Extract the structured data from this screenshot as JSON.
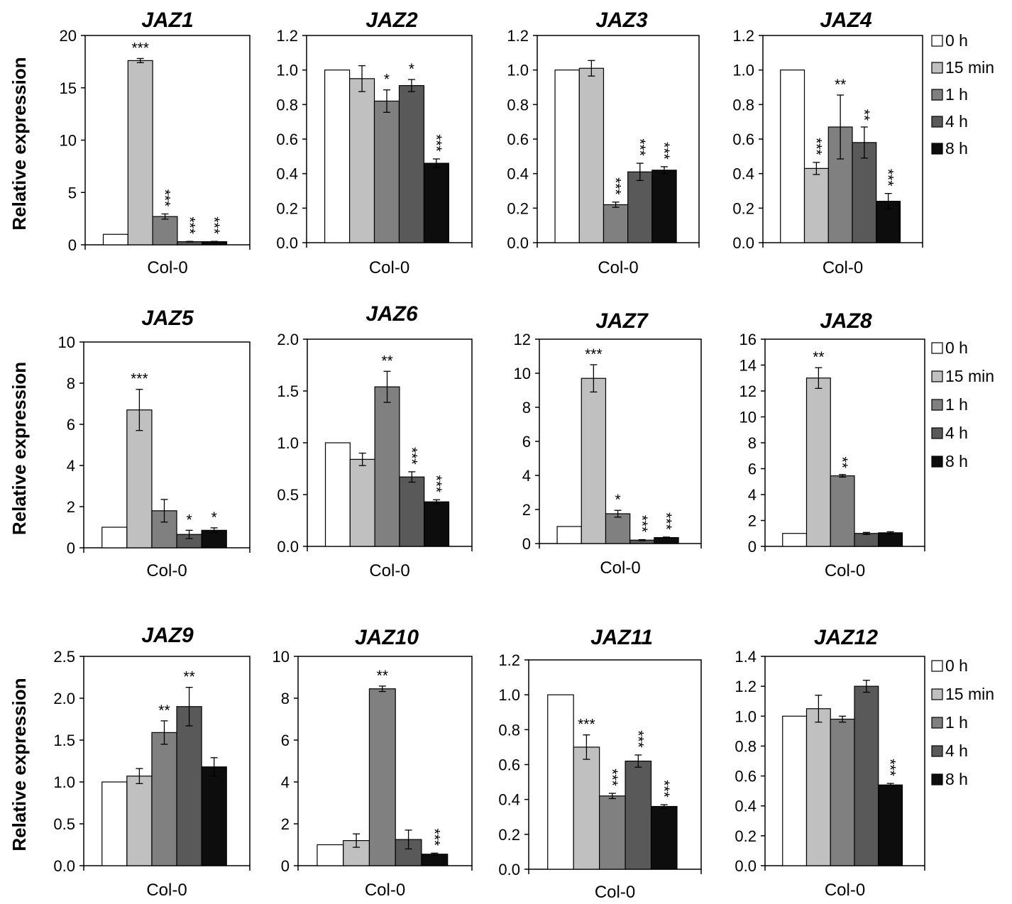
{
  "shared": {
    "ylabel": "Relative expression",
    "xlabel": "Col-0",
    "legend_labels": [
      "0 h",
      "15 min",
      "1 h",
      "4 h",
      "8 h"
    ],
    "colors": [
      "#ffffff",
      "#c0c0c0",
      "#808080",
      "#595959",
      "#0d0d0d"
    ]
  },
  "chart_data": [
    {
      "type": "bar",
      "title": "JAZ1",
      "categories": [
        "Col-0"
      ],
      "ylim": [
        0,
        20
      ],
      "yticks": [
        "0",
        "5",
        "10",
        "15",
        "20"
      ],
      "series": [
        {
          "name": "0 h",
          "values": [
            1.0
          ],
          "err": [
            0.0
          ],
          "sig": ""
        },
        {
          "name": "15 min",
          "values": [
            17.6
          ],
          "err": [
            0.2
          ],
          "sig": "***"
        },
        {
          "name": "1 h",
          "values": [
            2.7
          ],
          "err": [
            0.25
          ],
          "sig": "***"
        },
        {
          "name": "4 h",
          "values": [
            0.3
          ],
          "err": [
            0.03
          ],
          "sig": "***"
        },
        {
          "name": "8 h",
          "values": [
            0.3
          ],
          "err": [
            0.03
          ],
          "sig": "***"
        }
      ]
    },
    {
      "type": "bar",
      "title": "JAZ2",
      "categories": [
        "Col-0"
      ],
      "ylim": [
        0,
        1.2
      ],
      "yticks": [
        "0.0",
        "0.2",
        "0.4",
        "0.6",
        "0.8",
        "1.0",
        "1.2"
      ],
      "series": [
        {
          "name": "0 h",
          "values": [
            1.0
          ],
          "err": [
            0.0
          ],
          "sig": ""
        },
        {
          "name": "15 min",
          "values": [
            0.95
          ],
          "err": [
            0.075
          ],
          "sig": ""
        },
        {
          "name": "1 h",
          "values": [
            0.82
          ],
          "err": [
            0.065
          ],
          "sig": "*"
        },
        {
          "name": "4 h",
          "values": [
            0.91
          ],
          "err": [
            0.035
          ],
          "sig": "*"
        },
        {
          "name": "8 h",
          "values": [
            0.46
          ],
          "err": [
            0.025
          ],
          "sig": "***"
        }
      ]
    },
    {
      "type": "bar",
      "title": "JAZ3",
      "categories": [
        "Col-0"
      ],
      "ylim": [
        0,
        1.2
      ],
      "yticks": [
        "0.0",
        "0.2",
        "0.4",
        "0.6",
        "0.8",
        "1.0",
        "1.2"
      ],
      "series": [
        {
          "name": "0 h",
          "values": [
            1.0
          ],
          "err": [
            0.0
          ],
          "sig": ""
        },
        {
          "name": "15 min",
          "values": [
            1.01
          ],
          "err": [
            0.045
          ],
          "sig": ""
        },
        {
          "name": "1 h",
          "values": [
            0.22
          ],
          "err": [
            0.015
          ],
          "sig": "***"
        },
        {
          "name": "4 h",
          "values": [
            0.41
          ],
          "err": [
            0.05
          ],
          "sig": "***"
        },
        {
          "name": "8 h",
          "values": [
            0.42
          ],
          "err": [
            0.02
          ],
          "sig": "***"
        }
      ]
    },
    {
      "type": "bar",
      "title": "JAZ4",
      "categories": [
        "Col-0"
      ],
      "ylim": [
        0,
        1.2
      ],
      "yticks": [
        "0.0",
        "0.2",
        "0.4",
        "0.6",
        "0.8",
        "1.0",
        "1.2"
      ],
      "series": [
        {
          "name": "0 h",
          "values": [
            1.0
          ],
          "err": [
            0.0
          ],
          "sig": ""
        },
        {
          "name": "15 min",
          "values": [
            0.43
          ],
          "err": [
            0.035
          ],
          "sig": "***"
        },
        {
          "name": "1 h",
          "values": [
            0.67
          ],
          "err": [
            0.185
          ],
          "sig": "**"
        },
        {
          "name": "4 h",
          "values": [
            0.58
          ],
          "err": [
            0.09
          ],
          "sig": "**"
        },
        {
          "name": "8 h",
          "values": [
            0.24
          ],
          "err": [
            0.045
          ],
          "sig": "***"
        }
      ]
    },
    {
      "type": "bar",
      "title": "JAZ5",
      "categories": [
        "Col-0"
      ],
      "ylim": [
        0,
        10
      ],
      "yticks": [
        "0",
        "2",
        "4",
        "6",
        "8",
        "10"
      ],
      "series": [
        {
          "name": "0 h",
          "values": [
            1.0
          ],
          "err": [
            0.0
          ],
          "sig": ""
        },
        {
          "name": "15 min",
          "values": [
            6.7
          ],
          "err": [
            1.0
          ],
          "sig": "***"
        },
        {
          "name": "1 h",
          "values": [
            1.8
          ],
          "err": [
            0.55
          ],
          "sig": ""
        },
        {
          "name": "4 h",
          "values": [
            0.65
          ],
          "err": [
            0.2
          ],
          "sig": "*"
        },
        {
          "name": "8 h",
          "values": [
            0.85
          ],
          "err": [
            0.12
          ],
          "sig": "*"
        }
      ]
    },
    {
      "type": "bar",
      "title": "JAZ6",
      "categories": [
        "Col-0"
      ],
      "ylim": [
        0,
        2.0
      ],
      "yticks": [
        "0.0",
        "0.5",
        "1.0",
        "1.5",
        "2.0"
      ],
      "series": [
        {
          "name": "0 h",
          "values": [
            1.0
          ],
          "err": [
            0.0
          ],
          "sig": ""
        },
        {
          "name": "15 min",
          "values": [
            0.84
          ],
          "err": [
            0.06
          ],
          "sig": ""
        },
        {
          "name": "1 h",
          "values": [
            1.54
          ],
          "err": [
            0.15
          ],
          "sig": "**"
        },
        {
          "name": "4 h",
          "values": [
            0.67
          ],
          "err": [
            0.05
          ],
          "sig": "***"
        },
        {
          "name": "8 h",
          "values": [
            0.43
          ],
          "err": [
            0.02
          ],
          "sig": "***"
        }
      ]
    },
    {
      "type": "bar",
      "title": "JAZ7",
      "categories": [
        "Col-0"
      ],
      "ylim": [
        0,
        12
      ],
      "yticks": [
        "0",
        "2",
        "4",
        "6",
        "8",
        "10",
        "12"
      ],
      "series": [
        {
          "name": "0 h",
          "values": [
            1.0
          ],
          "err": [
            0.0
          ],
          "sig": ""
        },
        {
          "name": "15 min",
          "values": [
            9.7
          ],
          "err": [
            0.8
          ],
          "sig": "***"
        },
        {
          "name": "1 h",
          "values": [
            1.75
          ],
          "err": [
            0.2
          ],
          "sig": "*"
        },
        {
          "name": "4 h",
          "values": [
            0.2
          ],
          "err": [
            0.03
          ],
          "sig": "***"
        },
        {
          "name": "8 h",
          "values": [
            0.35
          ],
          "err": [
            0.03
          ],
          "sig": "***"
        }
      ]
    },
    {
      "type": "bar",
      "title": "JAZ8",
      "categories": [
        "Col-0"
      ],
      "ylim": [
        0,
        16
      ],
      "yticks": [
        "0",
        "2",
        "4",
        "6",
        "8",
        "10",
        "12",
        "14",
        "16"
      ],
      "series": [
        {
          "name": "0 h",
          "values": [
            1.0
          ],
          "err": [
            0.0
          ],
          "sig": ""
        },
        {
          "name": "15 min",
          "values": [
            13.0
          ],
          "err": [
            0.8
          ],
          "sig": "**"
        },
        {
          "name": "1 h",
          "values": [
            5.45
          ],
          "err": [
            0.1
          ],
          "sig": "**"
        },
        {
          "name": "4 h",
          "values": [
            1.0
          ],
          "err": [
            0.08
          ],
          "sig": ""
        },
        {
          "name": "8 h",
          "values": [
            1.05
          ],
          "err": [
            0.08
          ],
          "sig": ""
        }
      ]
    },
    {
      "type": "bar",
      "title": "JAZ9",
      "categories": [
        "Col-0"
      ],
      "ylim": [
        0,
        2.5
      ],
      "yticks": [
        "0.0",
        "0.5",
        "1.0",
        "1.5",
        "2.0",
        "2.5"
      ],
      "series": [
        {
          "name": "0 h",
          "values": [
            1.0
          ],
          "err": [
            0.0
          ],
          "sig": ""
        },
        {
          "name": "15 min",
          "values": [
            1.07
          ],
          "err": [
            0.09
          ],
          "sig": ""
        },
        {
          "name": "1 h",
          "values": [
            1.59
          ],
          "err": [
            0.14
          ],
          "sig": "**"
        },
        {
          "name": "4 h",
          "values": [
            1.9
          ],
          "err": [
            0.23
          ],
          "sig": "**"
        },
        {
          "name": "8 h",
          "values": [
            1.18
          ],
          "err": [
            0.11
          ],
          "sig": ""
        }
      ]
    },
    {
      "type": "bar",
      "title": "JAZ10",
      "categories": [
        "Col-0"
      ],
      "ylim": [
        0,
        10
      ],
      "yticks": [
        "0",
        "2",
        "4",
        "6",
        "8",
        "10"
      ],
      "series": [
        {
          "name": "0 h",
          "values": [
            1.0
          ],
          "err": [
            0.0
          ],
          "sig": ""
        },
        {
          "name": "15 min",
          "values": [
            1.2
          ],
          "err": [
            0.32
          ],
          "sig": ""
        },
        {
          "name": "1 h",
          "values": [
            8.45
          ],
          "err": [
            0.13
          ],
          "sig": "**"
        },
        {
          "name": "4 h",
          "values": [
            1.25
          ],
          "err": [
            0.45
          ],
          "sig": ""
        },
        {
          "name": "8 h",
          "values": [
            0.55
          ],
          "err": [
            0.05
          ],
          "sig": "***"
        }
      ]
    },
    {
      "type": "bar",
      "title": "JAZ11",
      "categories": [
        "Col-0"
      ],
      "ylim": [
        0,
        1.2
      ],
      "yticks": [
        "0.0",
        "0.2",
        "0.4",
        "0.6",
        "0.8",
        "1.0",
        "1.2"
      ],
      "series": [
        {
          "name": "0 h",
          "values": [
            1.0
          ],
          "err": [
            0.0
          ],
          "sig": ""
        },
        {
          "name": "15 min",
          "values": [
            0.7
          ],
          "err": [
            0.07
          ],
          "sig": "***"
        },
        {
          "name": "1 h",
          "values": [
            0.42
          ],
          "err": [
            0.015
          ],
          "sig": "***"
        },
        {
          "name": "4 h",
          "values": [
            0.62
          ],
          "err": [
            0.035
          ],
          "sig": "***"
        },
        {
          "name": "8 h",
          "values": [
            0.36
          ],
          "err": [
            0.01
          ],
          "sig": "***"
        }
      ]
    },
    {
      "type": "bar",
      "title": "JAZ12",
      "categories": [
        "Col-0"
      ],
      "ylim": [
        0,
        1.4
      ],
      "yticks": [
        "0.0",
        "0.2",
        "0.4",
        "0.6",
        "0.8",
        "1.0",
        "1.2",
        "1.4"
      ],
      "series": [
        {
          "name": "0 h",
          "values": [
            1.0
          ],
          "err": [
            0.0
          ],
          "sig": ""
        },
        {
          "name": "15 min",
          "values": [
            1.05
          ],
          "err": [
            0.09
          ],
          "sig": ""
        },
        {
          "name": "1 h",
          "values": [
            0.98
          ],
          "err": [
            0.02
          ],
          "sig": ""
        },
        {
          "name": "4 h",
          "values": [
            1.2
          ],
          "err": [
            0.04
          ],
          "sig": ""
        },
        {
          "name": "8 h",
          "values": [
            0.54
          ],
          "err": [
            0.01
          ],
          "sig": "***"
        }
      ]
    }
  ]
}
